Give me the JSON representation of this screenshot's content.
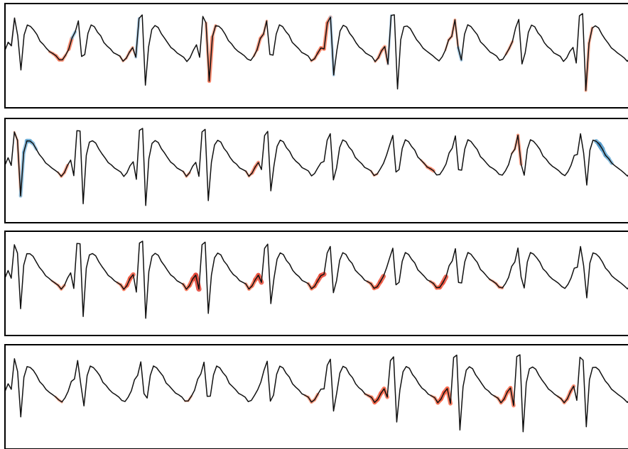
{
  "chart_data": [
    {
      "type": "line",
      "title": "",
      "xlabel": "",
      "ylabel": "",
      "grid": false,
      "legend": "none",
      "colormap": [
        "#08306b",
        "#2171b5",
        "#6baed6",
        "#c6dbef",
        "#fcbba1",
        "#fb6a4a",
        "#cb181d",
        "#67000d"
      ],
      "beat_morphology": [
        [
          0.0,
          0.55
        ],
        [
          0.035,
          0.58
        ],
        [
          0.065,
          0.68
        ],
        [
          0.09,
          0.4
        ],
        [
          0.11,
          0.72
        ],
        [
          0.14,
          0.92
        ],
        [
          0.165,
          0.86
        ],
        [
          0.19,
          0.94
        ],
        [
          0.215,
          0.5
        ],
        [
          0.24,
          0.12
        ],
        [
          0.265,
          0.5
        ],
        [
          0.31,
          0.72
        ],
        [
          0.36,
          0.82
        ],
        [
          0.42,
          0.8
        ],
        [
          0.5,
          0.72
        ],
        [
          0.58,
          0.63
        ],
        [
          0.66,
          0.57
        ],
        [
          0.74,
          0.52
        ],
        [
          0.82,
          0.49
        ],
        [
          0.89,
          0.43
        ],
        [
          0.94,
          0.47
        ],
        [
          1.0,
          0.55
        ]
      ],
      "series": [
        {
          "beats": 10,
          "values": [
            0.0,
            0.08,
            0.05,
            0.0,
            0.0,
            0.0,
            0.0,
            0.0,
            0.0,
            0.0,
            0.0,
            0.0,
            0.0,
            0.0,
            -0.24,
            -0.29,
            -0.35,
            -0.35,
            -0.27,
            -0.18,
            -0.37,
            0.29,
            0.0,
            0.0,
            0.0,
            0.0,
            0.0,
            0.0,
            0.0,
            0.0,
            0.0,
            0.0,
            0.0,
            0.0,
            0.0,
            0.0,
            -0.12,
            -0.17,
            -0.21,
            -0.23,
            -0.13,
            0.23,
            0.0,
            0.0,
            0.0,
            0.0,
            0.0,
            0.0,
            0.0,
            0.0,
            0.0,
            0.0,
            0.0,
            0.0,
            0.0,
            0.0,
            0.0,
            0.0,
            0.0,
            0.0,
            0.0,
            0.0,
            0.0,
            -0.23,
            -0.37,
            -0.25,
            0.0,
            0.0,
            0.0,
            0.0,
            0.0,
            0.0,
            0.0,
            0.0,
            0.0,
            0.0,
            0.0,
            0.0,
            -0.17,
            -0.3,
            -0.3,
            -0.18,
            0.0,
            0.0,
            0.0,
            0.0,
            0.0,
            0.0,
            0.0,
            0.0,
            0.0,
            0.0,
            0.0,
            0.0,
            0.0,
            0.0,
            -0.22,
            -0.28,
            -0.36,
            -0.35,
            -0.35,
            -0.34,
            0.23,
            0.0,
            0.0,
            0.0,
            0.0,
            0.0,
            0.0,
            0.0,
            0.0,
            0.0,
            0.0,
            0.0,
            0.0,
            0.0,
            -0.2,
            -0.28,
            -0.31,
            -0.22,
            0.17,
            0.0,
            0.0,
            0.0,
            0.0,
            0.0,
            0.0,
            0.0,
            0.0,
            0.0,
            0.0,
            0.0,
            0.0,
            0.0,
            0.0,
            0.0,
            0.0,
            0.0,
            -0.12,
            -0.22,
            -0.21,
            -0.16,
            0.27,
            0.0,
            0.0,
            0.0,
            0.0,
            0.0,
            0.0,
            0.0,
            0.0,
            0.0,
            0.0,
            0.0,
            0.0,
            0.0,
            0.0,
            -0.19,
            -0.21,
            0.0,
            0.0,
            0.0,
            0.0,
            0.0,
            0.0,
            0.0,
            0.0,
            0.0,
            0.0,
            0.0,
            0.0,
            0.0,
            0.0,
            0.0,
            0.0,
            0.0,
            0.0,
            0.0,
            0.0,
            0.0,
            0.0,
            0.0,
            -0.23,
            -0.22,
            0.0,
            0.0,
            0.0,
            0.0,
            0.0,
            0.0,
            0.0,
            0.0,
            0.0,
            0.0,
            0.0,
            0.0,
            0.0,
            0.0
          ]
        },
        {
          "beats": 10,
          "values": [
            0.0,
            0.0,
            0.0,
            -0.12,
            -0.17,
            0.33,
            0.36,
            0.46,
            0.41,
            0.29,
            0.0,
            0.0,
            0.0,
            0.0,
            0.0,
            0.0,
            0.0,
            -0.15,
            -0.25,
            -0.27,
            0.0,
            0.0,
            0.0,
            0.0,
            0.0,
            0.0,
            0.0,
            0.0,
            0.0,
            0.0,
            0.0,
            0.0,
            0.0,
            0.0,
            0.0,
            0.0,
            0.0,
            0.0,
            0.0,
            0.0,
            0.0,
            0.0,
            0.0,
            0.0,
            0.0,
            0.0,
            0.0,
            0.0,
            0.0,
            0.0,
            0.0,
            0.0,
            0.0,
            0.0,
            0.0,
            0.0,
            0.0,
            -0.13,
            -0.21,
            0.0,
            0.0,
            0.0,
            0.0,
            0.0,
            0.0,
            0.0,
            0.0,
            0.0,
            0.0,
            0.0,
            0.0,
            0.0,
            0.0,
            0.0,
            0.0,
            0.0,
            0.0,
            -0.15,
            -0.2,
            -0.34,
            -0.34,
            0.0,
            0.0,
            0.0,
            0.0,
            0.0,
            0.0,
            0.0,
            0.0,
            0.0,
            0.0,
            0.0,
            0.0,
            0.0,
            0.0,
            0.0,
            0.0,
            0.0,
            0.0,
            0.0,
            0.0,
            0.0,
            0.0,
            0.0,
            0.0,
            0.0,
            0.0,
            0.0,
            0.0,
            0.0,
            0.0,
            0.0,
            0.0,
            0.0,
            0.0,
            0.0,
            0.0,
            -0.14,
            -0.18,
            0.0,
            0.0,
            0.0,
            0.0,
            0.0,
            0.0,
            0.0,
            0.0,
            0.0,
            0.0,
            0.0,
            0.0,
            0.0,
            0.0,
            -0.15,
            -0.21,
            -0.3,
            -0.35,
            0.0,
            0.0,
            0.0,
            0.0,
            0.0,
            0.0,
            0.0,
            0.0,
            0.0,
            0.0,
            0.0,
            0.0,
            0.0,
            0.0,
            0.0,
            0.0,
            0.0,
            0.0,
            0.0,
            0.0,
            0.0,
            0.0,
            0.0,
            0.0,
            0.0,
            -0.13,
            -0.2,
            -0.27,
            0.0,
            0.0,
            0.0,
            0.0,
            0.0,
            0.0,
            0.0,
            0.0,
            0.0,
            0.0,
            0.0,
            0.0,
            0.0,
            0.0,
            0.0,
            0.0,
            0.0,
            0.0,
            0.0,
            0.0,
            0.0,
            0.0,
            0.0,
            0.0,
            0.46,
            0.57,
            0.45,
            0.44,
            0.37,
            0.0,
            0.0,
            0.0,
            0.0,
            0.0,
            0.0,
            0.0,
            0.0
          ]
        },
        {
          "beats": 10,
          "values": [
            0.0,
            0.0,
            0.0,
            0.0,
            0.0,
            0.0,
            0.0,
            0.0,
            0.0,
            0.0,
            0.0,
            0.0,
            0.0,
            0.0,
            0.0,
            -0.14,
            -0.18,
            -0.25,
            -0.26,
            0.0,
            0.0,
            0.0,
            0.0,
            0.0,
            0.0,
            0.0,
            0.0,
            0.0,
            0.0,
            0.0,
            0.0,
            0.0,
            0.0,
            0.0,
            0.0,
            0.0,
            -0.21,
            -0.3,
            -0.36,
            -0.47,
            -0.49,
            0.0,
            0.0,
            0.0,
            0.0,
            0.0,
            0.0,
            0.0,
            0.0,
            0.0,
            0.0,
            0.0,
            0.0,
            0.0,
            0.0,
            0.0,
            0.0,
            -0.29,
            -0.38,
            -0.46,
            -0.52,
            -0.58,
            0.0,
            0.0,
            0.0,
            0.0,
            0.0,
            0.0,
            0.0,
            0.0,
            0.0,
            0.0,
            0.0,
            0.0,
            0.0,
            0.0,
            0.0,
            -0.27,
            -0.34,
            -0.42,
            -0.49,
            -0.53,
            0.0,
            0.0,
            0.0,
            0.0,
            0.0,
            0.0,
            0.0,
            0.0,
            0.0,
            0.0,
            0.0,
            0.0,
            0.0,
            0.0,
            0.0,
            -0.29,
            -0.37,
            -0.45,
            -0.51,
            -0.55,
            0.0,
            0.0,
            0.0,
            0.0,
            0.0,
            0.0,
            0.0,
            0.0,
            0.0,
            0.0,
            0.0,
            0.0,
            0.0,
            0.0,
            -0.24,
            -0.33,
            -0.42,
            -0.48,
            -0.51,
            0.0,
            0.0,
            0.0,
            0.0,
            0.0,
            0.0,
            0.0,
            0.0,
            0.0,
            0.0,
            0.0,
            0.0,
            0.0,
            0.0,
            0.0,
            -0.27,
            -0.34,
            -0.43,
            -0.48,
            -0.52,
            0.0,
            0.0,
            0.0,
            0.0,
            0.0,
            0.0,
            0.0,
            0.0,
            0.0,
            0.0,
            0.0,
            0.0,
            0.0,
            0.0,
            -0.15,
            -0.2,
            -0.24,
            -0.27,
            0.0,
            0.0,
            0.0,
            0.0,
            0.0,
            0.0,
            0.0,
            0.0,
            0.0,
            0.0,
            0.0,
            0.0,
            0.0,
            0.0,
            0.0,
            0.0,
            0.0,
            0.0,
            0.0,
            0.0,
            0.0,
            0.0,
            0.0,
            0.0,
            0.0,
            0.0,
            0.0,
            0.0,
            0.0,
            0.0,
            0.0,
            0.0,
            0.0,
            0.0,
            0.0,
            0.0,
            0.0,
            0.0,
            0.0,
            0.0,
            0.0,
            0.0,
            0.0
          ]
        },
        {
          "beats": 10,
          "values": [
            0.0,
            0.0,
            0.0,
            0.0,
            0.0,
            0.0,
            0.0,
            0.0,
            0.0,
            0.0,
            0.0,
            0.0,
            0.0,
            0.0,
            0.0,
            0.0,
            -0.15,
            -0.2,
            0.0,
            0.0,
            0.0,
            0.0,
            0.0,
            0.0,
            0.0,
            0.0,
            0.0,
            0.0,
            0.0,
            0.0,
            0.0,
            0.0,
            0.0,
            0.0,
            0.0,
            0.0,
            0.0,
            0.0,
            0.0,
            0.0,
            0.0,
            0.0,
            0.0,
            0.0,
            0.0,
            0.0,
            0.0,
            0.0,
            0.0,
            0.0,
            0.0,
            0.0,
            0.0,
            0.0,
            0.0,
            0.0,
            0.0,
            -0.13,
            -0.16,
            0.0,
            0.0,
            0.0,
            0.0,
            0.0,
            0.0,
            0.0,
            0.0,
            0.0,
            0.0,
            0.0,
            0.0,
            0.0,
            0.0,
            0.0,
            0.0,
            0.0,
            0.0,
            0.0,
            0.0,
            0.0,
            0.0,
            0.0,
            0.0,
            0.0,
            0.0,
            0.0,
            0.0,
            0.0,
            0.0,
            0.0,
            0.0,
            0.0,
            0.0,
            0.0,
            0.0,
            -0.17,
            -0.26,
            -0.28,
            -0.28,
            0.0,
            0.0,
            0.0,
            0.0,
            0.0,
            0.0,
            0.0,
            0.0,
            0.0,
            0.0,
            0.0,
            0.0,
            0.0,
            0.0,
            0.0,
            -0.19,
            -0.29,
            -0.38,
            -0.45,
            -0.45,
            -0.46,
            -0.4,
            0.0,
            0.0,
            0.0,
            0.0,
            0.0,
            0.0,
            0.0,
            0.0,
            0.0,
            0.0,
            0.0,
            0.0,
            0.0,
            0.0,
            -0.2,
            -0.32,
            -0.44,
            -0.47,
            -0.48,
            -0.43,
            0.0,
            0.0,
            0.0,
            0.0,
            0.0,
            0.0,
            0.0,
            0.0,
            0.0,
            0.0,
            0.0,
            0.0,
            0.0,
            0.0,
            -0.17,
            -0.28,
            -0.34,
            -0.41,
            -0.42,
            -0.38,
            0.0,
            0.0,
            0.0,
            0.0,
            0.0,
            0.0,
            0.0,
            0.0,
            0.0,
            0.0,
            0.0,
            0.0,
            0.0,
            0.0,
            -0.15,
            -0.24,
            -0.31,
            -0.35,
            -0.36,
            0.0,
            0.0,
            0.0,
            0.0,
            0.0,
            0.0,
            0.0,
            0.0,
            0.0,
            0.0,
            0.0,
            0.0,
            0.0,
            0.0,
            0.0,
            0.0,
            0.0,
            0.0,
            0.0,
            0.0
          ]
        }
      ]
    }
  ]
}
